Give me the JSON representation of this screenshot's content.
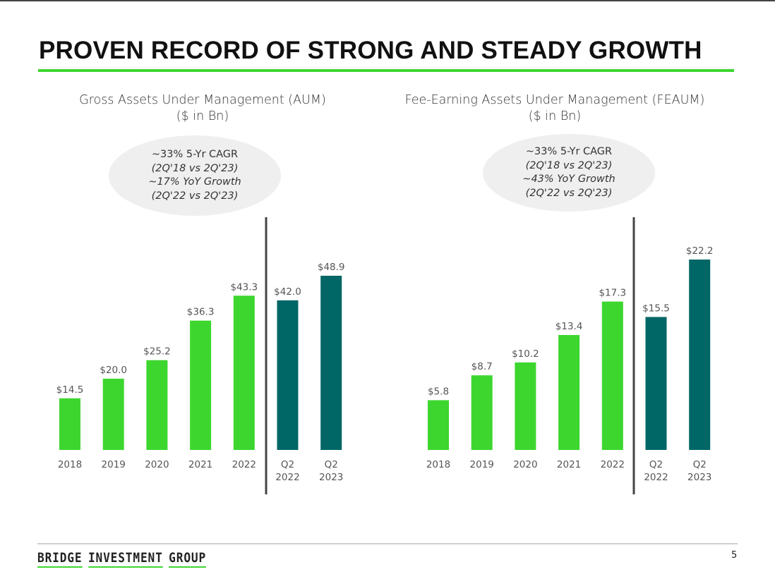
{
  "title": "PROVEN RECORD OF STRONG AND STEADY GROWTH",
  "footer": {
    "logo_words": [
      "BRIDGE",
      "INVESTMENT",
      "GROUP"
    ],
    "page_number": "5"
  },
  "colors": {
    "annual": "#3dd62f",
    "quarterly": "#006666",
    "accent": "#3dd62f"
  },
  "chart_data": [
    {
      "type": "bar",
      "title": "Gross Assets Under Management (AUM)",
      "subtitle": "($ in Bn)",
      "categories": [
        "2018",
        "2019",
        "2020",
        "2021",
        "2022",
        "Q2 2022",
        "Q2 2023"
      ],
      "values": [
        14.5,
        20.0,
        25.2,
        36.3,
        43.3,
        42.0,
        48.9
      ],
      "data_labels": [
        "$14.5",
        "$20.0",
        "$25.2",
        "$36.3",
        "$43.3",
        "$42.0",
        "$48.9"
      ],
      "bar_colors": [
        "annual",
        "annual",
        "annual",
        "annual",
        "annual",
        "quarterly",
        "quarterly"
      ],
      "annotation": {
        "line1": "~33% 5-Yr CAGR",
        "line2": "(2Q'18 vs 2Q'23)",
        "line3": "~17% YoY Growth",
        "line4": "(2Q'22 vs 2Q'23)"
      },
      "ylim": [
        0,
        48.9
      ],
      "grid": false
    },
    {
      "type": "bar",
      "title": "Fee-Earning Assets Under Management (FEAUM)",
      "subtitle": "($ in Bn)",
      "categories": [
        "2018",
        "2019",
        "2020",
        "2021",
        "2022",
        "Q2 2022",
        "Q2 2023"
      ],
      "values": [
        5.8,
        8.7,
        10.2,
        13.4,
        17.3,
        15.5,
        22.2
      ],
      "data_labels": [
        "$5.8",
        "$8.7",
        "$10.2",
        "$13.4",
        "$17.3",
        "$15.5",
        "$22.2"
      ],
      "bar_colors": [
        "annual",
        "annual",
        "annual",
        "annual",
        "annual",
        "quarterly",
        "quarterly"
      ],
      "annotation": {
        "line1": "~33% 5-Yr CAGR",
        "line2": "(2Q'18 vs 2Q'23)",
        "line3": "~43% YoY Growth",
        "line4": "(2Q'22 vs 2Q'23)"
      },
      "ylim": [
        0,
        22.2
      ],
      "grid": false
    }
  ]
}
